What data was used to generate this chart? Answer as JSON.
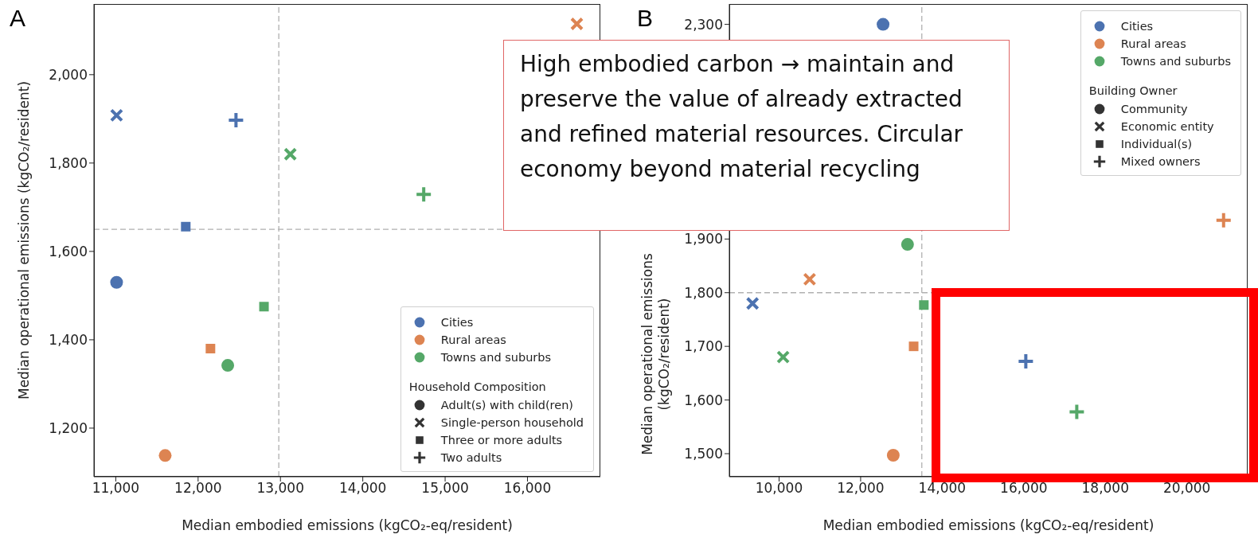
{
  "chart_data": [
    {
      "type": "scatter",
      "title": "A",
      "xlabel": "Median embodied emissions (kgCO₂-eq/resident)",
      "ylabel": "Median operational emissions (kgCO₂/resident)",
      "xlim": [
        10735,
        16885
      ],
      "ylim": [
        1090,
        2160
      ],
      "xticks": [
        {
          "value": 11000,
          "label": "11,000"
        },
        {
          "value": 12000,
          "label": "12,000"
        },
        {
          "value": 13000,
          "label": "13,000"
        },
        {
          "value": 14000,
          "label": "14,000"
        },
        {
          "value": 15000,
          "label": "15,000"
        },
        {
          "value": 16000,
          "label": "16,000"
        }
      ],
      "yticks": [
        {
          "value": 1200,
          "label": "1,200"
        },
        {
          "value": 1400,
          "label": "1,400"
        },
        {
          "value": 1600,
          "label": "1,600"
        },
        {
          "value": 1800,
          "label": "1,800"
        },
        {
          "value": 2000,
          "label": "2,000"
        }
      ],
      "legend": "bottom right",
      "legend_title": "Household Composition",
      "ref_lines": [
        {
          "axis": "x",
          "value": 12980,
          "color": "#b0b0b0",
          "line_style": "dashed"
        },
        {
          "axis": "y",
          "value": 1650,
          "color": "#b0b0b0",
          "line_style": "dashed"
        }
      ],
      "annotations": [
        "High embodied carbon → maintain and preserve the value of already extracted and refined material resources. Circular economy beyond material recycling"
      ],
      "series": [
        {
          "name": "Cities",
          "color": "#4c72b0",
          "marker": "circle",
          "x": [
            11010
          ],
          "values": [
            1530
          ]
        },
        {
          "name": "Rural areas",
          "color": "#dd8452",
          "marker": "circle",
          "x": [
            11600
          ],
          "values": [
            1138
          ]
        },
        {
          "name": "Towns and suburbs",
          "color": "#55a868",
          "marker": "circle",
          "x": [
            12360
          ],
          "values": [
            1342
          ]
        },
        {
          "color": "#4c72b0",
          "marker": "cross",
          "x": [
            11010
          ],
          "values": [
            1908
          ]
        },
        {
          "color": "#4c72b0",
          "marker": "square",
          "x": [
            11850
          ],
          "values": [
            1656
          ]
        },
        {
          "color": "#4c72b0",
          "marker": "plus",
          "x": [
            12460
          ],
          "values": [
            1897
          ]
        },
        {
          "color": "#dd8452",
          "marker": "cross",
          "x": [
            16600
          ],
          "values": [
            2115
          ]
        },
        {
          "color": "#dd8452",
          "marker": "square",
          "x": [
            12150
          ],
          "values": [
            1380
          ]
        },
        {
          "color": "#55a868",
          "marker": "cross",
          "x": [
            13120
          ],
          "values": [
            1820
          ]
        },
        {
          "color": "#55a868",
          "marker": "square",
          "x": [
            12800
          ],
          "values": [
            1475
          ]
        },
        {
          "color": "#55a868",
          "marker": "plus",
          "x": [
            14740
          ],
          "values": [
            1729
          ]
        },
        {
          "name": "Adult(s) with child(ren)",
          "color": "#333333",
          "marker": "circle"
        },
        {
          "name": "Single-person household",
          "color": "#333333",
          "marker": "cross"
        },
        {
          "name": "Three or more adults",
          "color": "#333333",
          "marker": "square"
        },
        {
          "name": "Two adults",
          "color": "#333333",
          "marker": "plus"
        }
      ]
    },
    {
      "type": "scatter",
      "title": "B",
      "xlabel": "Median embodied emissions (kgCO₂-eq/resident)",
      "ylabel": "Median operational emissions (kgCO₂/resident)",
      "xlim": [
        8780,
        21490
      ],
      "ylim": [
        1457,
        2338
      ],
      "xticks": [
        {
          "value": 10000,
          "label": "10,000"
        },
        {
          "value": 12000,
          "label": "12,000"
        },
        {
          "value": 14000,
          "label": "14,000"
        },
        {
          "value": 16000,
          "label": "16,000"
        },
        {
          "value": 18000,
          "label": "18,000"
        },
        {
          "value": 20000,
          "label": "20,000"
        }
      ],
      "yticks": [
        {
          "value": 1500,
          "label": "1,500"
        },
        {
          "value": 1600,
          "label": "1,600"
        },
        {
          "value": 1700,
          "label": "1,700"
        },
        {
          "value": 1800,
          "label": "1,800"
        },
        {
          "value": 1900,
          "label": "1,900"
        },
        {
          "value": 2300,
          "label": "2,300"
        }
      ],
      "legend": "top right",
      "legend_title": "Building Owner",
      "ref_lines": [
        {
          "axis": "x",
          "value": 13500,
          "color": "#b0b0b0",
          "line_style": "dashed"
        },
        {
          "axis": "y",
          "value": 1800,
          "color": "#b0b0b0",
          "line_style": "dashed"
        }
      ],
      "series": [
        {
          "name": "Cities",
          "color": "#4c72b0",
          "marker": "circle",
          "x": [
            12550
          ],
          "values": [
            2300
          ]
        },
        {
          "name": "Rural areas",
          "color": "#dd8452",
          "marker": "circle",
          "x": [
            12800
          ],
          "values": [
            1497
          ]
        },
        {
          "name": "Towns and suburbs",
          "color": "#55a868",
          "marker": "circle",
          "x": [
            13150
          ],
          "values": [
            1890
          ]
        },
        {
          "color": "#4c72b0",
          "marker": "cross",
          "x": [
            9350
          ],
          "values": [
            1780
          ]
        },
        {
          "color": "#4c72b0",
          "marker": "plus",
          "x": [
            16050
          ],
          "values": [
            1672
          ]
        },
        {
          "color": "#dd8452",
          "marker": "cross",
          "x": [
            10750
          ],
          "values": [
            1825
          ]
        },
        {
          "color": "#dd8452",
          "marker": "square",
          "x": [
            13300
          ],
          "values": [
            1700
          ]
        },
        {
          "color": "#dd8452",
          "marker": "plus",
          "x": [
            20900
          ],
          "values": [
            1935
          ]
        },
        {
          "color": "#55a868",
          "marker": "cross",
          "x": [
            10100
          ],
          "values": [
            1680
          ]
        },
        {
          "color": "#55a868",
          "marker": "square",
          "x": [
            13550
          ],
          "values": [
            1777
          ]
        },
        {
          "color": "#55a868",
          "marker": "plus",
          "x": [
            17300
          ],
          "values": [
            1578
          ]
        },
        {
          "name": "Community",
          "color": "#333333",
          "marker": "circle"
        },
        {
          "name": "Economic entity",
          "color": "#333333",
          "marker": "cross"
        },
        {
          "name": "Individual(s)",
          "color": "#333333",
          "marker": "square"
        },
        {
          "name": "Mixed owners",
          "color": "#333333",
          "marker": "plus"
        }
      ]
    }
  ]
}
